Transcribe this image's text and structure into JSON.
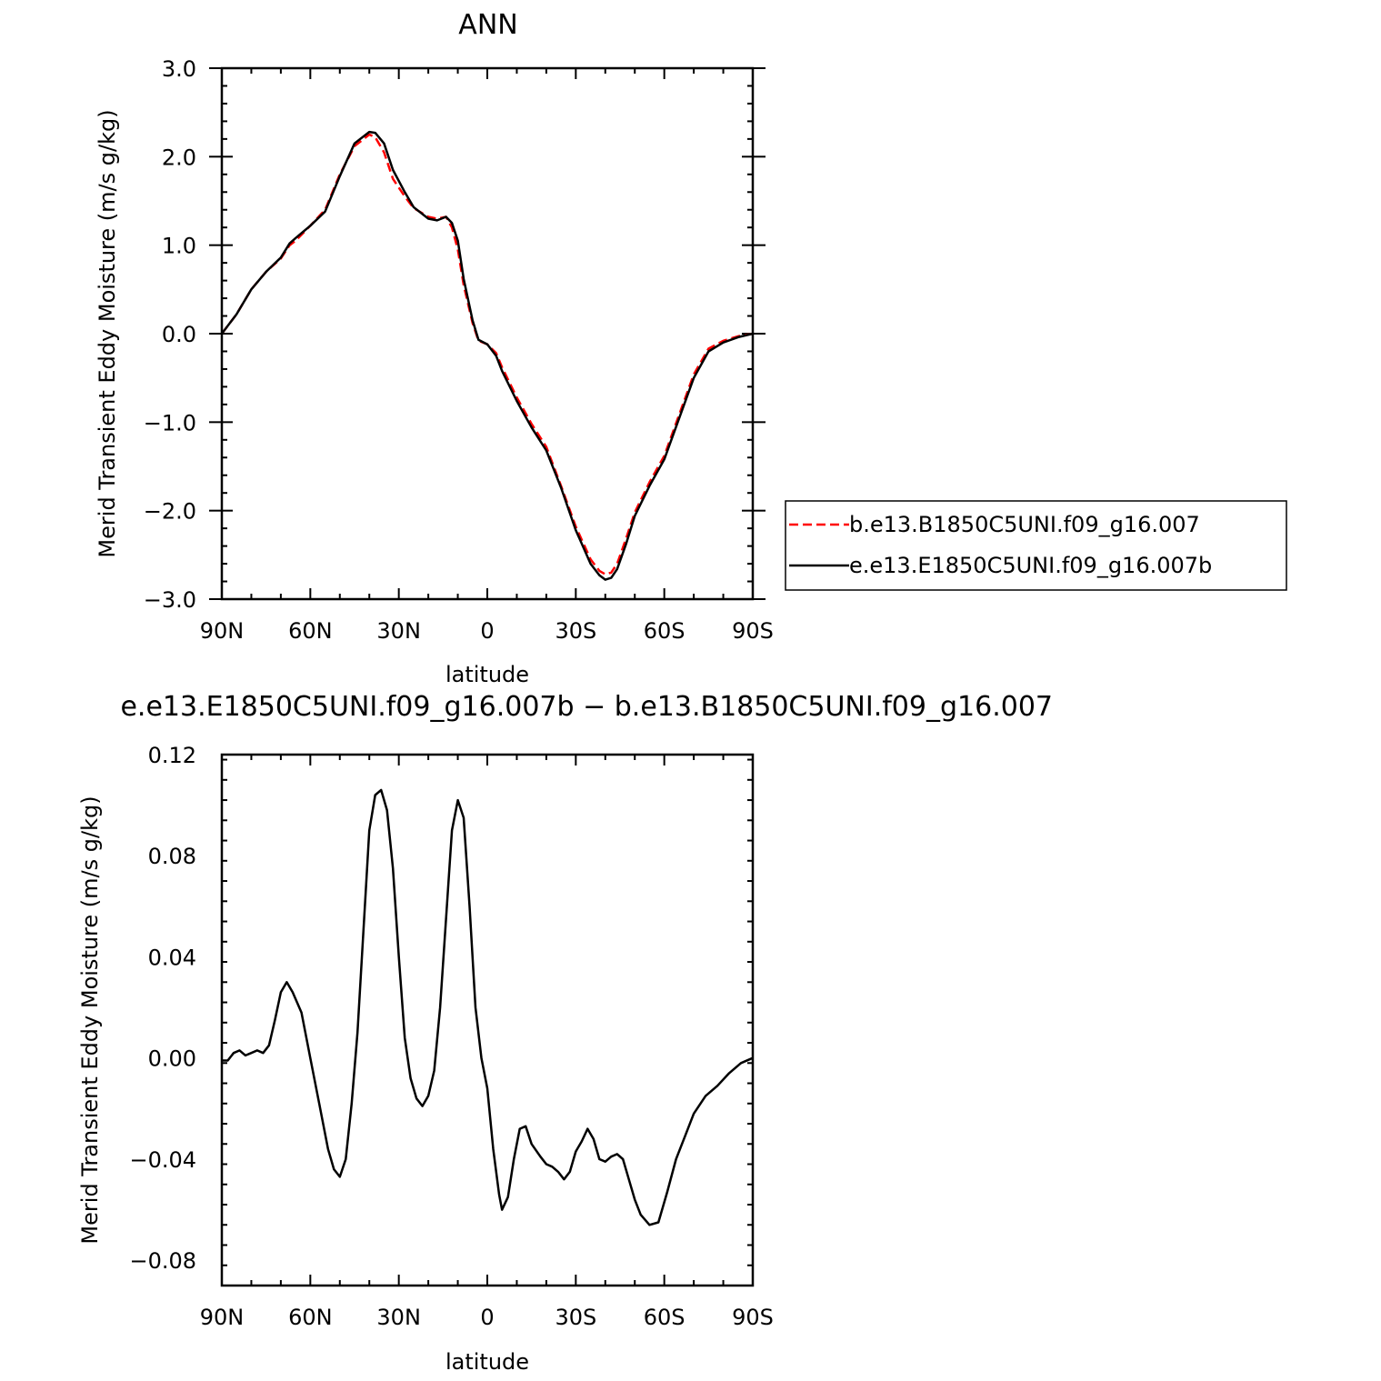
{
  "chart_data": [
    {
      "type": "line",
      "title": "ANN",
      "xlabel": "latitude",
      "ylabel": "Merid Transient Eddy Moisture (m/s g/kg)",
      "xlim": [
        90,
        -90
      ],
      "ylim": [
        -3.0,
        3.0
      ],
      "x_ticks": [
        90,
        60,
        30,
        0,
        -30,
        -60,
        -90
      ],
      "x_tick_labels": [
        "90N",
        "60N",
        "30N",
        "0",
        "30S",
        "60S",
        "90S"
      ],
      "y_ticks": [
        3.0,
        2.0,
        1.0,
        0.0,
        -1.0,
        -2.0,
        -3.0
      ],
      "y_tick_labels": [
        "3.0",
        "2.0",
        "1.0",
        "0.0",
        "−1.0",
        "−2.0",
        "−3.0"
      ],
      "legend_position": "right",
      "series": [
        {
          "name": "b.e13.B1850C5UNI.f09_g16.007",
          "color": "#ff0000",
          "dash": "dashed",
          "x": [
            90,
            85,
            80,
            75,
            70,
            67,
            65,
            60,
            55,
            50,
            45,
            40,
            38,
            35,
            32,
            28,
            25,
            20,
            17,
            14,
            12,
            10,
            8,
            5,
            3,
            0,
            -3,
            -5,
            -10,
            -15,
            -20,
            -25,
            -30,
            -35,
            -38,
            -40,
            -42,
            -44,
            -47,
            -50,
            -55,
            -60,
            -65,
            -70,
            -75,
            -80,
            -85,
            -90
          ],
          "y": [
            0.0,
            0.22,
            0.5,
            0.7,
            0.85,
            1.0,
            1.05,
            1.22,
            1.4,
            1.8,
            2.12,
            2.25,
            2.22,
            2.05,
            1.75,
            1.55,
            1.42,
            1.32,
            1.3,
            1.32,
            1.2,
            0.95,
            0.55,
            0.12,
            -0.08,
            -0.12,
            -0.22,
            -0.38,
            -0.72,
            -1.02,
            -1.28,
            -1.72,
            -2.18,
            -2.55,
            -2.68,
            -2.72,
            -2.7,
            -2.6,
            -2.32,
            -2.02,
            -1.68,
            -1.38,
            -0.92,
            -0.46,
            -0.17,
            -0.08,
            -0.03,
            0.0
          ]
        },
        {
          "name": "e.e13.E1850C5UNI.f09_g16.007b",
          "color": "#000000",
          "dash": "solid",
          "x": [
            90,
            85,
            80,
            75,
            70,
            67,
            65,
            60,
            55,
            50,
            45,
            40,
            38,
            35,
            32,
            28,
            25,
            20,
            17,
            14,
            12,
            10,
            8,
            5,
            3,
            0,
            -3,
            -5,
            -10,
            -15,
            -20,
            -25,
            -30,
            -35,
            -38,
            -40,
            -42,
            -44,
            -47,
            -50,
            -55,
            -60,
            -65,
            -70,
            -75,
            -80,
            -85,
            -90
          ],
          "y": [
            0.0,
            0.22,
            0.5,
            0.7,
            0.86,
            1.02,
            1.08,
            1.22,
            1.38,
            1.78,
            2.15,
            2.28,
            2.27,
            2.15,
            1.85,
            1.6,
            1.43,
            1.3,
            1.28,
            1.32,
            1.25,
            1.05,
            0.62,
            0.15,
            -0.07,
            -0.12,
            -0.25,
            -0.42,
            -0.76,
            -1.06,
            -1.32,
            -1.74,
            -2.22,
            -2.6,
            -2.73,
            -2.78,
            -2.76,
            -2.66,
            -2.38,
            -2.06,
            -1.72,
            -1.42,
            -0.96,
            -0.5,
            -0.2,
            -0.1,
            -0.04,
            0.0
          ]
        }
      ]
    },
    {
      "type": "line",
      "title": "e.e13.E1850C5UNI.f09_g16.007b − b.e13.B1850C5UNI.f09_g16.007",
      "xlabel": "latitude",
      "ylabel": "Merid Transient Eddy Moisture (m/s g/kg)",
      "xlim": [
        90,
        -90
      ],
      "ylim": [
        -0.09,
        0.12
      ],
      "x_ticks": [
        90,
        60,
        30,
        0,
        -30,
        -60,
        -90
      ],
      "x_tick_labels": [
        "90N",
        "60N",
        "30N",
        "0",
        "30S",
        "60S",
        "90S"
      ],
      "y_ticks": [
        0.12,
        0.08,
        0.04,
        0.0,
        -0.04,
        -0.08
      ],
      "y_tick_labels": [
        "0.12",
        "0.08",
        "0.04",
        "0.00",
        "−0.04",
        "−0.08"
      ],
      "series": [
        {
          "color": "#000000",
          "dash": "solid",
          "x": [
            90,
            88,
            86,
            84,
            82,
            80,
            78,
            76,
            74,
            72,
            70,
            68,
            66,
            63,
            60,
            57,
            54,
            52,
            50,
            48,
            46,
            44,
            42,
            40,
            38,
            36,
            34,
            32,
            30,
            28,
            26,
            24,
            22,
            20,
            18,
            16,
            14,
            12,
            10,
            8,
            6,
            4,
            2,
            0,
            -2,
            -4,
            -5,
            -7,
            -9,
            -11,
            -13,
            -15,
            -18,
            -20,
            -22,
            -24,
            -26,
            -28,
            -30,
            -32,
            -34,
            -36,
            -38,
            -40,
            -42,
            -44,
            -46,
            -48,
            -50,
            -52,
            -55,
            -58,
            -61,
            -64,
            -67,
            -70,
            -74,
            -78,
            -82,
            -86,
            -90
          ],
          "y": [
            -0.001,
            -0.001,
            0.002,
            0.003,
            0.001,
            0.002,
            0.003,
            0.002,
            0.005,
            0.015,
            0.026,
            0.03,
            0.026,
            0.018,
            0.0,
            -0.018,
            -0.036,
            -0.044,
            -0.047,
            -0.04,
            -0.018,
            0.01,
            0.05,
            0.09,
            0.104,
            0.106,
            0.098,
            0.075,
            0.04,
            0.008,
            -0.008,
            -0.016,
            -0.019,
            -0.015,
            -0.005,
            0.02,
            0.055,
            0.09,
            0.102,
            0.095,
            0.06,
            0.02,
            0.0,
            -0.012,
            -0.036,
            -0.054,
            -0.06,
            -0.055,
            -0.04,
            -0.028,
            -0.027,
            -0.034,
            -0.039,
            -0.042,
            -0.043,
            -0.045,
            -0.048,
            -0.045,
            -0.037,
            -0.033,
            -0.028,
            -0.032,
            -0.04,
            -0.041,
            -0.039,
            -0.038,
            -0.04,
            -0.048,
            -0.056,
            -0.062,
            -0.066,
            -0.065,
            -0.053,
            -0.04,
            -0.031,
            -0.022,
            -0.015,
            -0.011,
            -0.006,
            -0.002,
            0.0
          ]
        }
      ]
    }
  ]
}
